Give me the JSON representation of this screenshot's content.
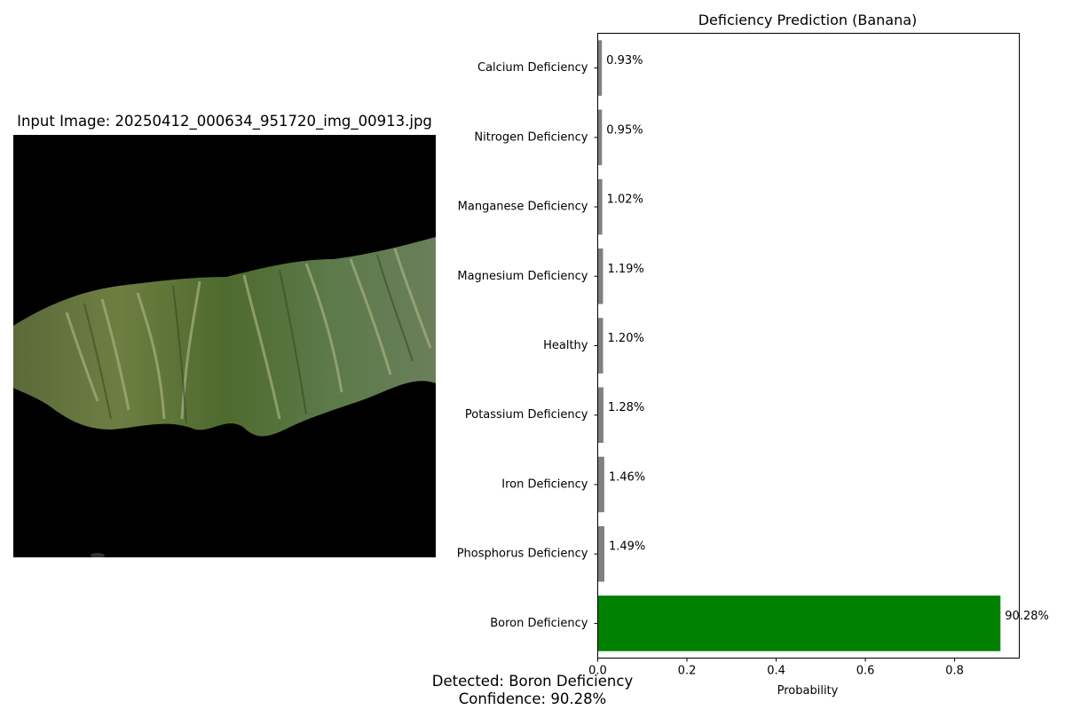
{
  "image_panel": {
    "title": "Input Image: 20250412_000634_951720_img_00913.jpg",
    "image_description_icon": "banana-leaf-photo"
  },
  "chart_data": {
    "type": "bar",
    "orientation": "horizontal",
    "title": "Deficiency Prediction (Banana)",
    "xlabel": "Probability",
    "ylabel": "",
    "xlim": [
      0,
      0.945
    ],
    "xticks": [
      0.0,
      0.2,
      0.4,
      0.6,
      0.8
    ],
    "xtick_labels": [
      "0.0",
      "0.2",
      "0.4",
      "0.6",
      "0.8"
    ],
    "categories": [
      "Calcium Deficiency",
      "Nitrogen Deficiency",
      "Manganese Deficiency",
      "Magnesium Deficiency",
      "Healthy",
      "Potassium Deficiency",
      "Iron Deficiency",
      "Phosphorus Deficiency",
      "Boron Deficiency"
    ],
    "values": [
      0.0093,
      0.0095,
      0.0102,
      0.0119,
      0.012,
      0.0128,
      0.0146,
      0.0149,
      0.9028
    ],
    "data_labels": [
      "0.93%",
      "0.95%",
      "1.02%",
      "1.19%",
      "1.20%",
      "1.28%",
      "1.46%",
      "1.49%",
      "90.28%"
    ],
    "bar_colors": [
      "#808080",
      "#808080",
      "#808080",
      "#808080",
      "#808080",
      "#808080",
      "#808080",
      "#808080",
      "#008000"
    ],
    "grid": false,
    "legend": "none"
  },
  "footer": {
    "detected": "Detected: Boron Deficiency",
    "confidence": "Confidence: 90.28%"
  }
}
